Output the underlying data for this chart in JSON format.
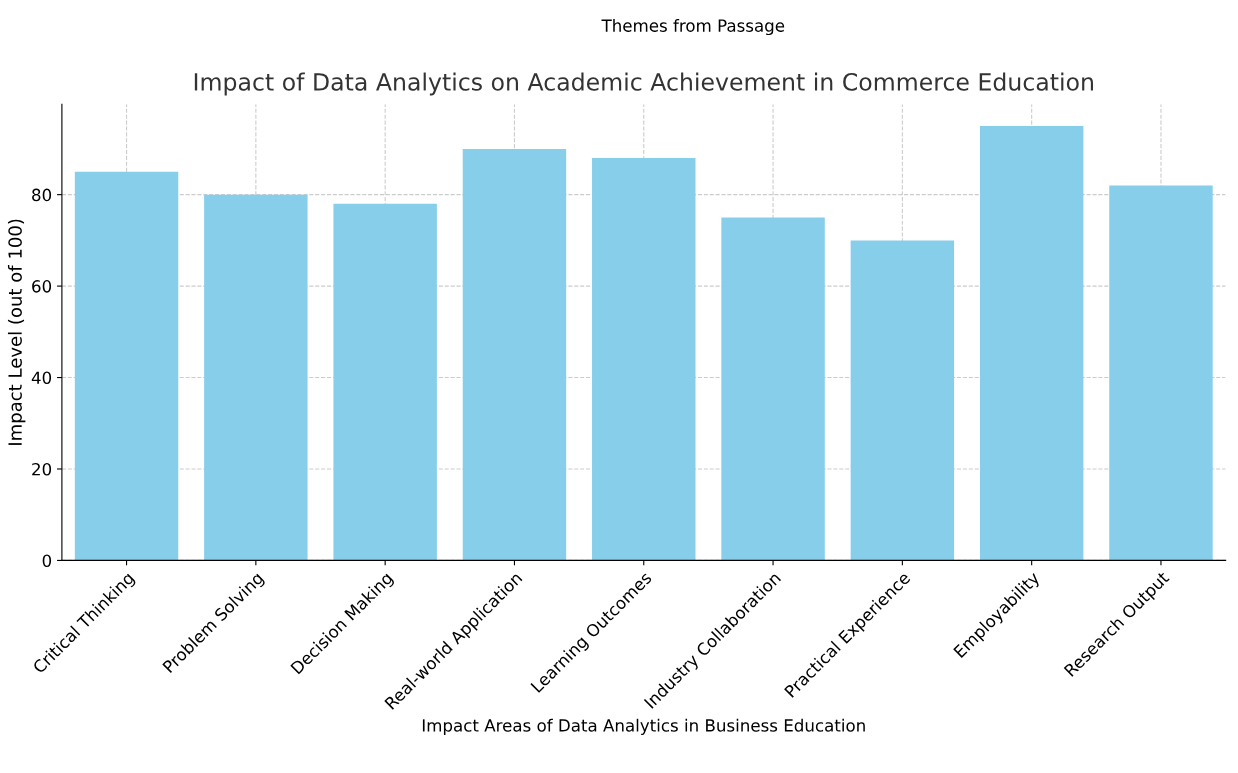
{
  "chart_data": {
    "type": "bar",
    "title": "Impact of Data Analytics on Academic Achievement in Commerce Education",
    "xlabel": "Impact Areas of Data Analytics in Business Education",
    "ylabel": "Impact Level (out of 100)",
    "annotations": [
      "Themes from Passage"
    ],
    "categories": [
      "Critical Thinking",
      "Problem Solving",
      "Decision Making",
      "Real-world Application",
      "Learning Outcomes",
      "Industry Collaboration",
      "Practical Experience",
      "Employability",
      "Research Output"
    ],
    "values": [
      85,
      80,
      78,
      90,
      88,
      75,
      70,
      95,
      82
    ],
    "color": "#87ceeb",
    "ylim": [
      0,
      99.75
    ],
    "yticks": [
      0,
      20,
      40,
      60,
      80
    ],
    "grid": true
  }
}
